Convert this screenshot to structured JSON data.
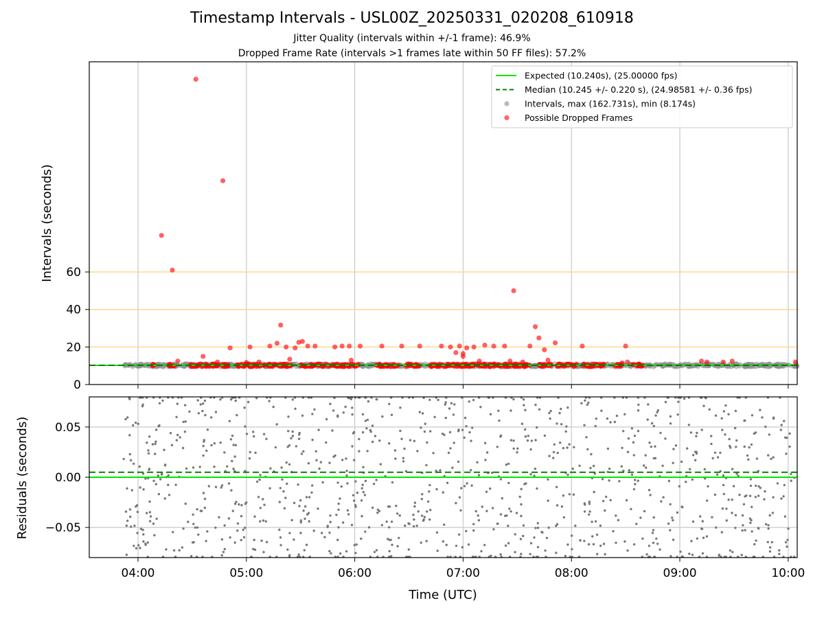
{
  "titles": {
    "main": "Timestamp Intervals - USL00Z_20250331_020208_610918",
    "subtitle1": "Jitter Quality (intervals within +/-1 frame): 46.9%",
    "subtitle2": "Dropped Frame Rate (intervals >1 frames late within 50 FF files): 57.2%"
  },
  "colors": {
    "expected": "#00e600",
    "median": "#008000",
    "intervals": "#8c8c8c",
    "dropped": "#ff0000",
    "reference_lines": "#ffd480",
    "grid": "#c8c8c8",
    "residual_points": "#777777"
  },
  "chart_data": [
    {
      "type": "scatter",
      "ylabel": "Intervals (seconds)",
      "xlim": [
        "03:33",
        "10:05"
      ],
      "ylim": [
        0,
        172
      ],
      "yticks": [
        "0",
        "20",
        "40",
        "60"
      ],
      "ytick_values": [
        0,
        20,
        40,
        60
      ],
      "reference_lines": [
        20,
        40,
        60
      ],
      "grid": "x only",
      "legend": {
        "placement": "top-right",
        "entries": [
          {
            "label": "Expected (10.240s), (25.00000 fps)",
            "marker": "solid-line",
            "color": "#00e600"
          },
          {
            "label": "Median (10.245 +/- 0.220 s), (24.98581 +/- 0.36 fps)",
            "marker": "dashed-line",
            "color": "#008000"
          },
          {
            "label": "Intervals, max (162.731s), min (8.174s)",
            "marker": "dot",
            "color": "#8c8c8c"
          },
          {
            "label": "Possible Dropped Frames",
            "marker": "dot",
            "color": "#ff0000"
          }
        ]
      },
      "expected_line": 10.24,
      "median_line": 10.245,
      "intervals_range": [
        "03:52",
        "10:05"
      ],
      "dropped_spans": [
        [
          "04:08",
          "04:10"
        ],
        [
          "04:17",
          "04:21"
        ],
        [
          "04:29",
          "04:50"
        ],
        [
          "04:55",
          "05:25"
        ],
        [
          "05:30",
          "05:58"
        ],
        [
          "05:59",
          "06:02"
        ],
        [
          "06:12",
          "06:24"
        ],
        [
          "06:28",
          "06:36"
        ],
        [
          "06:41",
          "07:37"
        ],
        [
          "07:42",
          "07:49"
        ],
        [
          "07:52",
          "08:04"
        ],
        [
          "08:06",
          "08:18"
        ],
        [
          "08:24",
          "08:28"
        ],
        [
          "08:34",
          "08:40"
        ]
      ],
      "series": [
        {
          "name": "Possible Dropped Frames",
          "points": [
            [
              "04:13",
              79.5
            ],
            [
              "04:19",
              61.0
            ],
            [
              "04:32",
              162.7
            ],
            [
              "04:47",
              108.6
            ],
            [
              "04:22",
              12.5
            ],
            [
              "04:36",
              15.0
            ],
            [
              "04:44",
              12.0
            ],
            [
              "04:51",
              19.5
            ],
            [
              "05:00",
              11.8
            ],
            [
              "05:02",
              20.0
            ],
            [
              "05:07",
              12.0
            ],
            [
              "05:13",
              20.5
            ],
            [
              "05:17",
              22.0
            ],
            [
              "05:19",
              31.7
            ],
            [
              "05:22",
              20.0
            ],
            [
              "05:24",
              13.5
            ],
            [
              "05:27",
              19.5
            ],
            [
              "05:29",
              22.5
            ],
            [
              "05:31",
              23.0
            ],
            [
              "05:34",
              20.5
            ],
            [
              "05:38",
              20.5
            ],
            [
              "05:49",
              20.0
            ],
            [
              "05:53",
              20.5
            ],
            [
              "05:57",
              20.5
            ],
            [
              "05:58",
              13.0
            ],
            [
              "06:03",
              20.5
            ],
            [
              "06:15",
              20.5
            ],
            [
              "06:26",
              20.5
            ],
            [
              "06:36",
              20.5
            ],
            [
              "06:48",
              20.5
            ],
            [
              "06:53",
              20.0
            ],
            [
              "06:56",
              17.0
            ],
            [
              "06:58",
              20.5
            ],
            [
              "07:00",
              15.0
            ],
            [
              "07:00",
              16.5
            ],
            [
              "07:02",
              19.5
            ],
            [
              "07:06",
              20.0
            ],
            [
              "07:09",
              12.5
            ],
            [
              "07:12",
              21.0
            ],
            [
              "07:17",
              20.5
            ],
            [
              "07:23",
              20.5
            ],
            [
              "07:26",
              12.5
            ],
            [
              "07:28",
              50.0
            ],
            [
              "07:33",
              12.0
            ],
            [
              "07:37",
              20.5
            ],
            [
              "07:40",
              30.8
            ],
            [
              "07:42",
              24.8
            ],
            [
              "07:45",
              18.5
            ],
            [
              "07:47",
              13.0
            ],
            [
              "07:51",
              22.2
            ],
            [
              "08:06",
              20.5
            ],
            [
              "08:30",
              20.5
            ],
            [
              "08:28",
              11.5
            ],
            [
              "08:31",
              12.0
            ],
            [
              "08:34",
              10.7
            ],
            [
              "09:12",
              12.5
            ],
            [
              "09:15",
              12.0
            ],
            [
              "09:24",
              12.0
            ],
            [
              "09:29",
              12.5
            ],
            [
              "10:04",
              12.0
            ]
          ]
        }
      ]
    },
    {
      "type": "scatter",
      "xlabel": "Time (UTC)",
      "ylabel": "Residuals (seconds)",
      "xlim": [
        "03:33",
        "10:05"
      ],
      "ylim": [
        -0.08,
        0.08
      ],
      "xticks": [
        "04:00",
        "05:00",
        "06:00",
        "07:00",
        "08:00",
        "09:00",
        "10:00"
      ],
      "yticks": [
        "0.05",
        "0.00",
        "−0.05"
      ],
      "ytick_values": [
        0.05,
        0.0,
        -0.05
      ],
      "grid": "both",
      "expected_line": 0.0,
      "median_line": 0.005,
      "residual_range": [
        "03:52",
        "10:05"
      ],
      "point_count": 1100
    }
  ]
}
